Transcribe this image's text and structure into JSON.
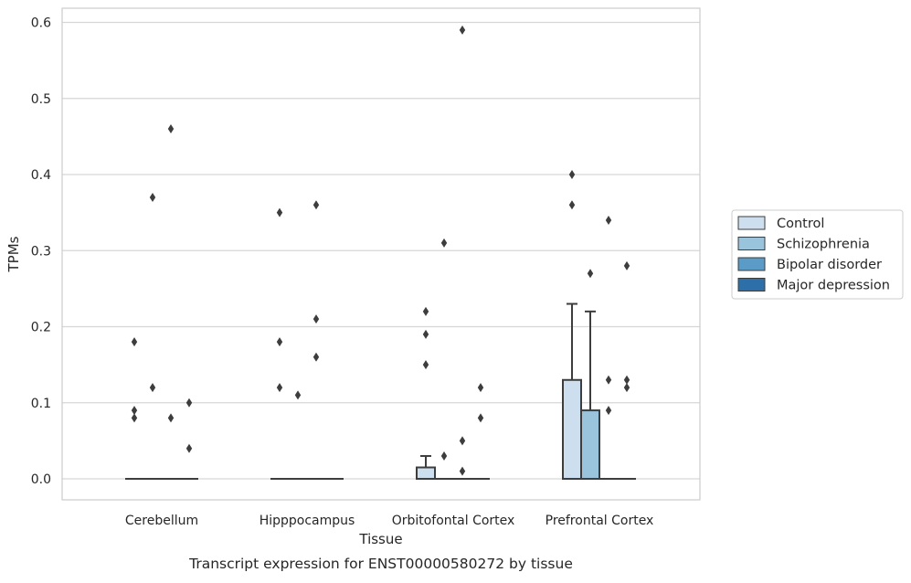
{
  "caption": "Transcript expression for ENST00000580272 by tissue",
  "chart_data": {
    "type": "box",
    "xlabel": "Tissue",
    "ylabel": "TPMs",
    "ylim": [
      -0.03,
      0.62
    ],
    "yticks": [
      0.0,
      0.1,
      0.2,
      0.3,
      0.4,
      0.5,
      0.6
    ],
    "ytick_labels": [
      "0.0",
      "0.1",
      "0.2",
      "0.3",
      "0.4",
      "0.5",
      "0.6"
    ],
    "grid": "horizontal",
    "legend_position": "right",
    "categories": [
      "Cerebellum",
      "Hipppocampus",
      "Orbitofontal Cortex",
      "Prefrontal Cortex"
    ],
    "series": [
      {
        "name": "Control",
        "color": "#cddfee",
        "boxes": [
          {
            "q1": 0,
            "median": 0,
            "q3": 0,
            "whisker_low": 0,
            "whisker_high": 0,
            "outliers": [
              0.18,
              0.09,
              0.08
            ]
          },
          {
            "q1": 0,
            "median": 0,
            "q3": 0,
            "whisker_low": 0,
            "whisker_high": 0,
            "outliers": [
              0.35,
              0.18,
              0.12
            ]
          },
          {
            "q1": 0,
            "median": 0,
            "q3": 0.015,
            "whisker_low": 0,
            "whisker_high": 0.03,
            "outliers": [
              0.22,
              0.19,
              0.15
            ]
          },
          {
            "q1": 0,
            "median": 0,
            "q3": 0.13,
            "whisker_low": 0,
            "whisker_high": 0.23,
            "outliers": [
              0.4,
              0.36
            ]
          }
        ]
      },
      {
        "name": "Schizophrenia",
        "color": "#9ac3dc",
        "boxes": [
          {
            "q1": 0,
            "median": 0,
            "q3": 0,
            "whisker_low": 0,
            "whisker_high": 0,
            "outliers": [
              0.37,
              0.12
            ]
          },
          {
            "q1": 0,
            "median": 0,
            "q3": 0,
            "whisker_low": 0,
            "whisker_high": 0,
            "outliers": [
              0.11
            ]
          },
          {
            "q1": 0,
            "median": 0,
            "q3": 0,
            "whisker_low": 0,
            "whisker_high": 0,
            "outliers": [
              0.31,
              0.03
            ]
          },
          {
            "q1": 0,
            "median": 0,
            "q3": 0.09,
            "whisker_low": 0,
            "whisker_high": 0.22,
            "outliers": [
              0.27
            ]
          }
        ]
      },
      {
        "name": "Bipolar disorder",
        "color": "#5a9bc7",
        "boxes": [
          {
            "q1": 0,
            "median": 0,
            "q3": 0,
            "whisker_low": 0,
            "whisker_high": 0,
            "outliers": [
              0.46,
              0.08
            ]
          },
          {
            "q1": 0,
            "median": 0,
            "q3": 0,
            "whisker_low": 0,
            "whisker_high": 0,
            "outliers": [
              0.36,
              0.21,
              0.16
            ]
          },
          {
            "q1": 0,
            "median": 0,
            "q3": 0,
            "whisker_low": 0,
            "whisker_high": 0,
            "outliers": [
              0.59,
              0.05,
              0.01
            ]
          },
          {
            "q1": 0,
            "median": 0,
            "q3": 0,
            "whisker_low": 0,
            "whisker_high": 0,
            "outliers": [
              0.34,
              0.13,
              0.09
            ]
          }
        ]
      },
      {
        "name": "Major depression",
        "color": "#2d6fa8",
        "boxes": [
          {
            "q1": 0,
            "median": 0,
            "q3": 0,
            "whisker_low": 0,
            "whisker_high": 0,
            "outliers": [
              0.1,
              0.04
            ]
          },
          {
            "q1": 0,
            "median": 0,
            "q3": 0,
            "whisker_low": 0,
            "whisker_high": 0,
            "outliers": []
          },
          {
            "q1": 0,
            "median": 0,
            "q3": 0,
            "whisker_low": 0,
            "whisker_high": 0,
            "outliers": [
              0.12,
              0.08
            ]
          },
          {
            "q1": 0,
            "median": 0,
            "q3": 0,
            "whisker_low": 0,
            "whisker_high": 0,
            "outliers": [
              0.28,
              0.13,
              0.12
            ]
          }
        ]
      }
    ]
  }
}
